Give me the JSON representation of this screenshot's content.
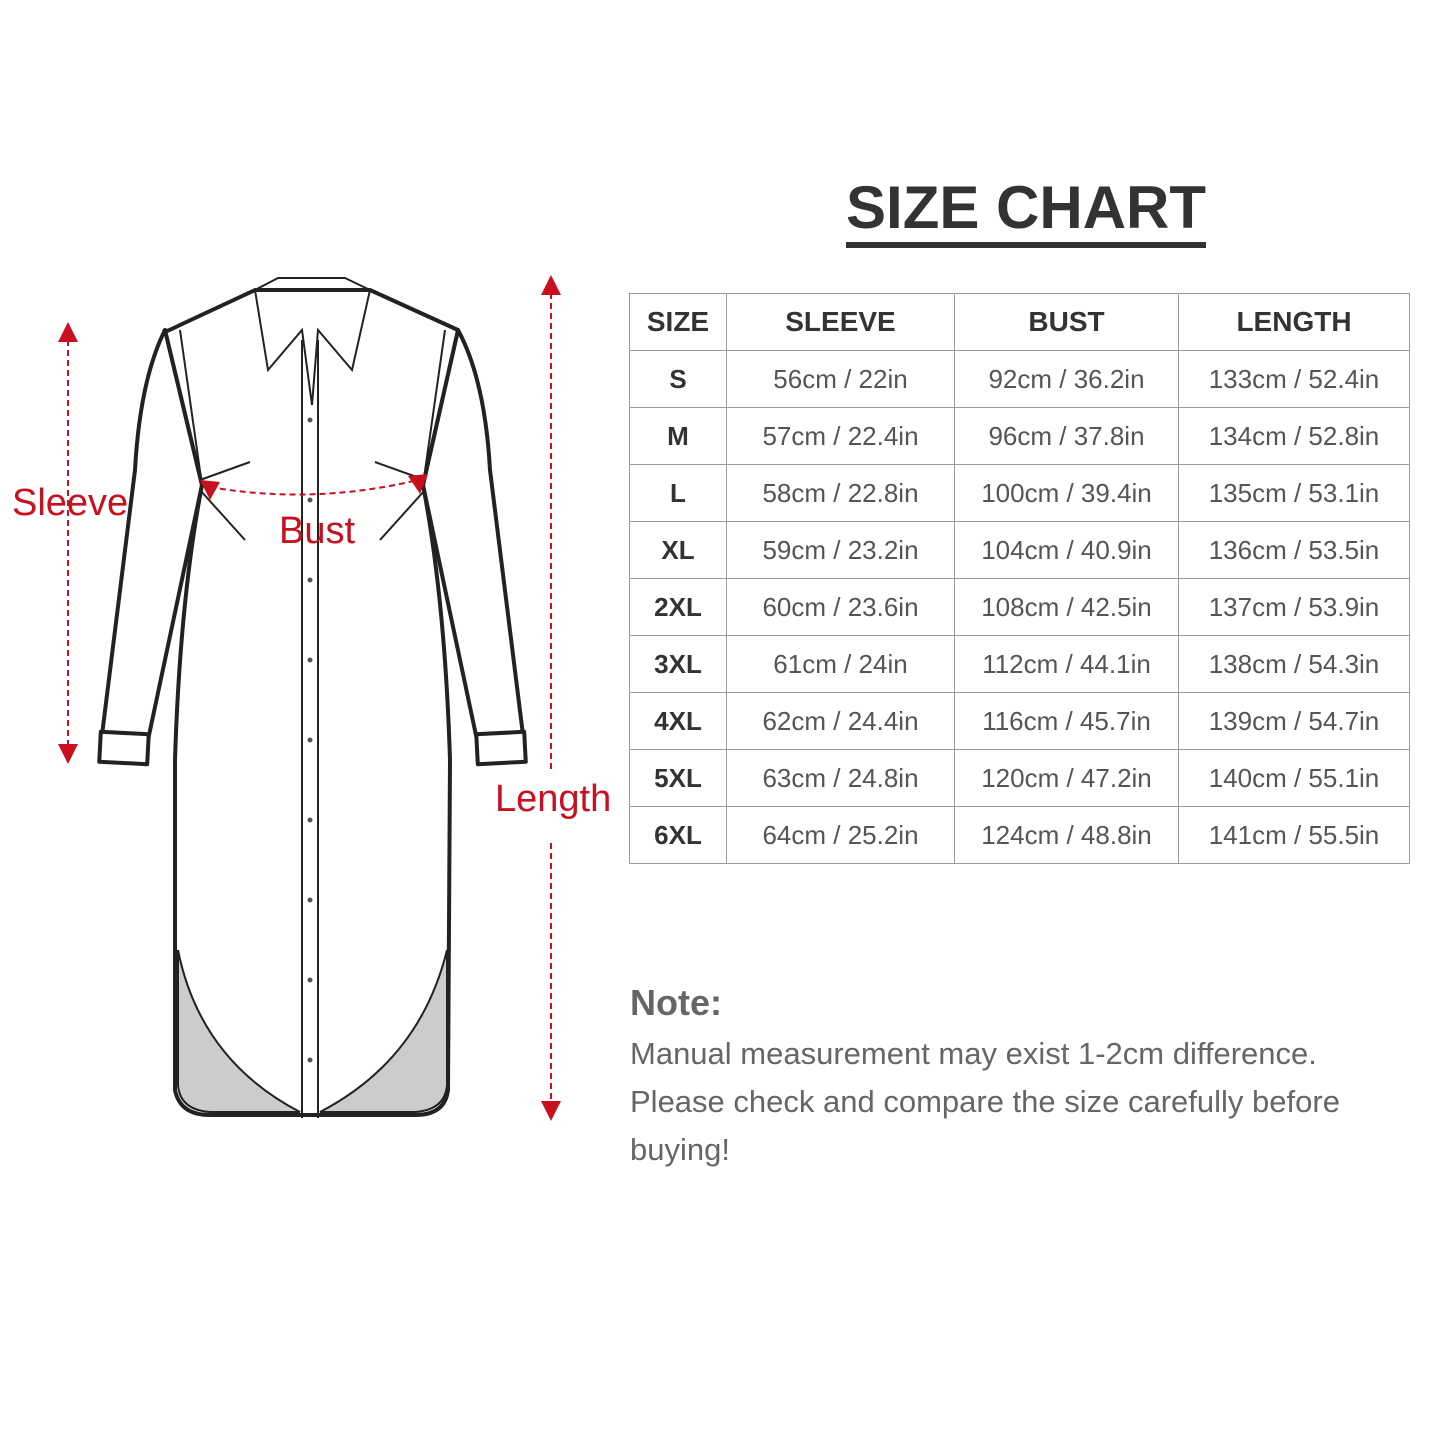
{
  "title": "SIZE CHART",
  "diagram_labels": {
    "sleeve": "Sleeve",
    "bust": "Bust",
    "length": "Length"
  },
  "colors": {
    "accent": "#c8101e",
    "text": "#333333",
    "hem_fill": "#cccccc"
  },
  "table": {
    "headers": [
      "SIZE",
      "SLEEVE",
      "BUST",
      "LENGTH"
    ],
    "rows": [
      [
        "S",
        "56cm / 22in",
        "92cm / 36.2in",
        "133cm / 52.4in"
      ],
      [
        "M",
        "57cm / 22.4in",
        "96cm / 37.8in",
        "134cm / 52.8in"
      ],
      [
        "L",
        "58cm / 22.8in",
        "100cm / 39.4in",
        "135cm / 53.1in"
      ],
      [
        "XL",
        "59cm / 23.2in",
        "104cm / 40.9in",
        "136cm / 53.5in"
      ],
      [
        "2XL",
        "60cm / 23.6in",
        "108cm / 42.5in",
        "137cm / 53.9in"
      ],
      [
        "3XL",
        "61cm / 24in",
        "112cm / 44.1in",
        "138cm / 54.3in"
      ],
      [
        "4XL",
        "62cm / 24.4in",
        "116cm / 45.7in",
        "139cm / 54.7in"
      ],
      [
        "5XL",
        "63cm / 24.8in",
        "120cm / 47.2in",
        "140cm / 55.1in"
      ],
      [
        "6XL",
        "64cm / 25.2in",
        "124cm / 48.8in",
        "141cm / 55.5in"
      ]
    ]
  },
  "note": {
    "heading": "Note:",
    "lines": [
      "Manual measurement may exist 1-2cm difference.",
      "Please check and compare the size carefully before buying!"
    ]
  }
}
